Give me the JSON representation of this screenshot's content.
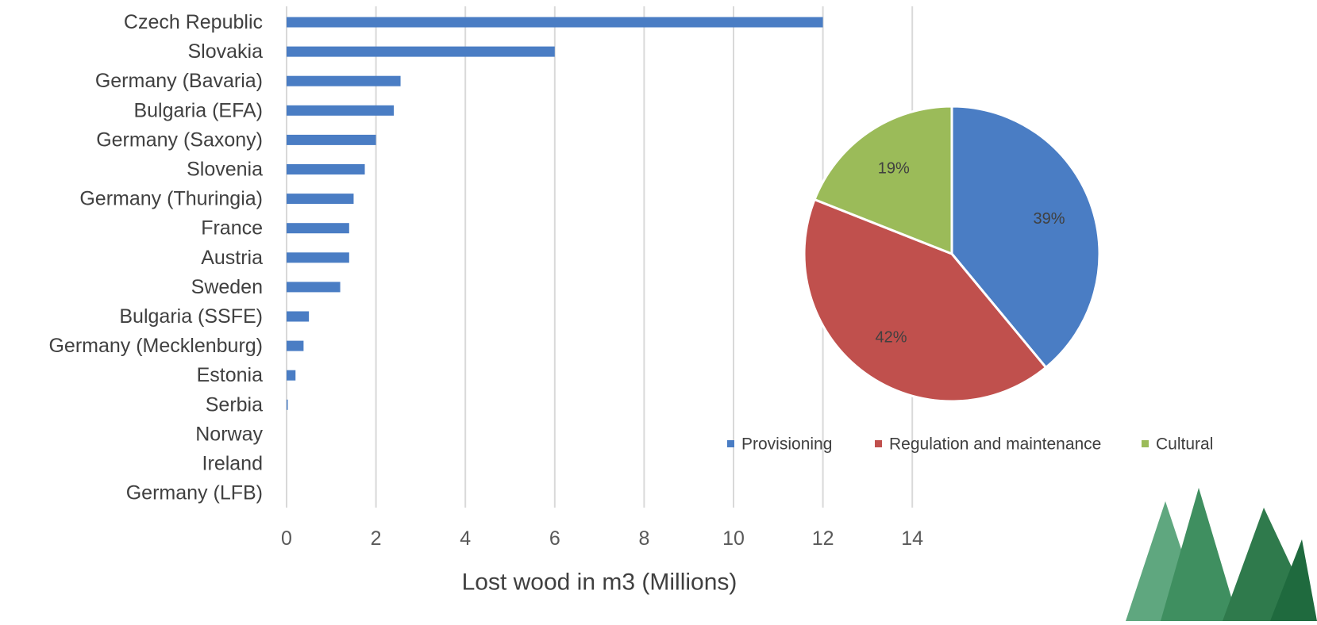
{
  "chart_data": [
    {
      "type": "bar",
      "orientation": "horizontal",
      "categories": [
        "Czech Republic",
        "Slovakia",
        "Germany (Bavaria)",
        "Bulgaria (EFA)",
        "Germany (Saxony)",
        "Slovenia",
        "Germany (Thuringia)",
        "France",
        "Austria",
        "Sweden",
        "Bulgaria (SSFE)",
        "Germany (Mecklenburg)",
        "Estonia",
        "Serbia",
        "Norway",
        "Ireland",
        "Germany (LFB)"
      ],
      "values": [
        12,
        6,
        2.55,
        2.4,
        2.0,
        1.75,
        1.5,
        1.4,
        1.4,
        1.2,
        0.5,
        0.38,
        0.2,
        0.02,
        0,
        0,
        0
      ],
      "xlabel": "Lost wood in m3 (Millions)",
      "xticks": [
        "0",
        "2",
        "4",
        "6",
        "8",
        "10",
        "12",
        "14"
      ],
      "xlim": [
        0,
        14
      ],
      "grid": true,
      "color": "#4a7dc4"
    },
    {
      "type": "pie",
      "slices": [
        {
          "name": "Provisioning",
          "value": 39,
          "label": "39%",
          "color": "#4a7dc4"
        },
        {
          "name": "Regulation and maintenance",
          "value": 42,
          "label": "42%",
          "color": "#c0504d"
        },
        {
          "name": "Cultural",
          "value": 19,
          "label": "19%",
          "color": "#9bbb59"
        }
      ],
      "legend": "bottom"
    }
  ]
}
